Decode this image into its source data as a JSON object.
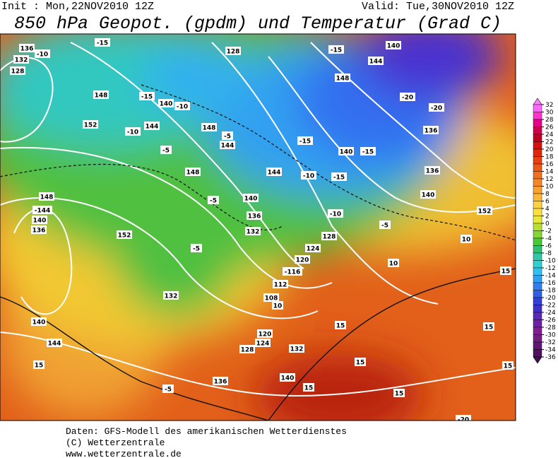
{
  "header": {
    "init": "Init : Mon,22NOV2010 12Z",
    "valid": "Valid: Tue,30NOV2010 12Z",
    "title": "850 hPa Geopot. (gpdm) und Temperatur (Grad C)"
  },
  "map": {
    "labels": [
      "136",
      "-10",
      "132",
      "128",
      "148",
      "-15",
      "140",
      "-10",
      "152",
      "144",
      "-10",
      "-5",
      "148",
      "-5",
      "144",
      "-15",
      "128",
      "140",
      "-15",
      "144",
      "148",
      "-20",
      "-20",
      "136",
      "-15",
      "140",
      "-15",
      "148",
      "144",
      "-10",
      "-15",
      "136",
      "140",
      "-5",
      "140",
      "148",
      "-144",
      "140",
      "136",
      "152",
      "152",
      "-5",
      "136",
      "132",
      "128",
      "124",
      "120",
      "-116",
      "112",
      "108",
      "10",
      "132",
      "140",
      "144",
      "120",
      "124",
      "128",
      "132",
      "136",
      "140",
      "15",
      "-5",
      "15",
      "15",
      "15",
      "10",
      "15",
      "15",
      "15",
      "15",
      "-20",
      "10",
      "-5",
      "-10"
    ]
  },
  "colorbar": {
    "ticks": [
      32,
      30,
      28,
      26,
      24,
      22,
      20,
      18,
      16,
      14,
      12,
      10,
      8,
      6,
      4,
      2,
      0,
      -2,
      -4,
      -6,
      -8,
      -10,
      -12,
      -14,
      -16,
      -18,
      -20,
      -22,
      -24,
      -26,
      -28,
      -30,
      -32,
      -34,
      -36
    ]
  },
  "footer": {
    "lines": [
      "Daten: GFS-Modell des amerikanischen Wetterdienstes",
      "(C) Wetterzentrale",
      "www.wetterzentrale.de"
    ]
  }
}
